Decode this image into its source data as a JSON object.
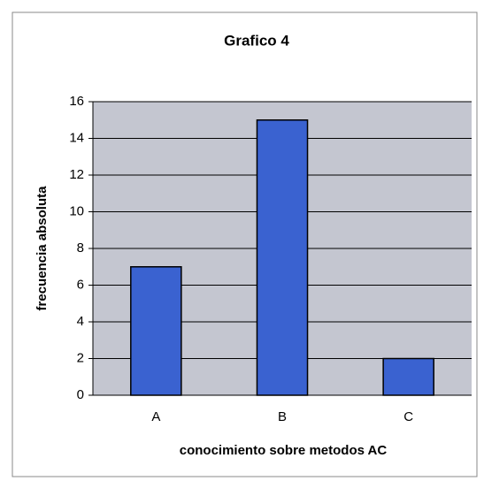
{
  "chart_data": {
    "type": "bar",
    "title": "Grafico 4",
    "xlabel": "conocimiento sobre metodos AC",
    "ylabel": "frecuencia absoluta",
    "categories": [
      "A",
      "B",
      "C"
    ],
    "values": [
      7,
      15,
      2
    ],
    "color": "#3a62d0",
    "ylim": [
      0,
      16
    ],
    "yticks": [
      0,
      2,
      4,
      6,
      8,
      10,
      12,
      14,
      16
    ],
    "grid": true
  }
}
